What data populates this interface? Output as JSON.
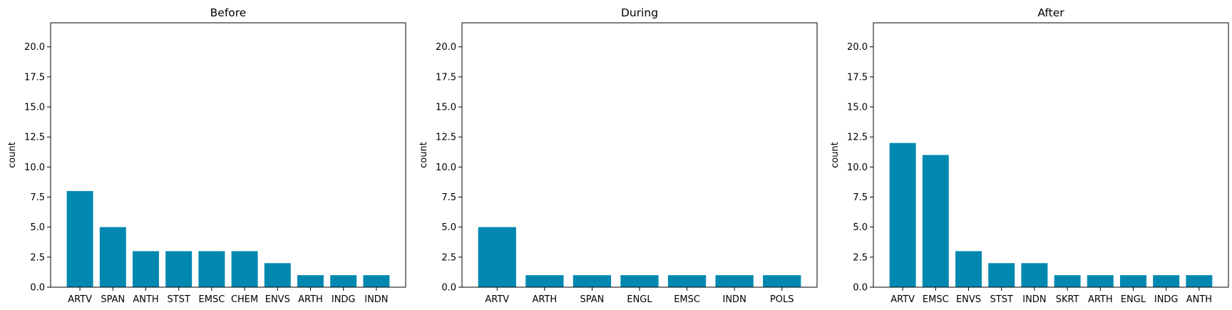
{
  "bar_color": "#0088b0",
  "chart_data": [
    {
      "type": "bar",
      "title": "Before",
      "xlabel": "",
      "ylabel": "count",
      "ylim": [
        0,
        22
      ],
      "yticks": [
        "0.0",
        "2.5",
        "5.0",
        "7.5",
        "10.0",
        "12.5",
        "15.0",
        "17.5",
        "20.0"
      ],
      "ytick_values": [
        0,
        2.5,
        5,
        7.5,
        10,
        12.5,
        15,
        17.5,
        20
      ],
      "categories": [
        "ARTV",
        "SPAN",
        "ANTH",
        "STST",
        "EMSC",
        "CHEM",
        "ENVS",
        "ARTH",
        "INDG",
        "INDN"
      ],
      "values": [
        8,
        5,
        3,
        3,
        3,
        3,
        2,
        1,
        1,
        1
      ]
    },
    {
      "type": "bar",
      "title": "During",
      "xlabel": "",
      "ylabel": "count",
      "ylim": [
        0,
        22
      ],
      "yticks": [
        "0.0",
        "2.5",
        "5.0",
        "7.5",
        "10.0",
        "12.5",
        "15.0",
        "17.5",
        "20.0"
      ],
      "ytick_values": [
        0,
        2.5,
        5,
        7.5,
        10,
        12.5,
        15,
        17.5,
        20
      ],
      "categories": [
        "ARTV",
        "ARTH",
        "SPAN",
        "ENGL",
        "EMSC",
        "INDN",
        "POLS"
      ],
      "values": [
        5,
        1,
        1,
        1,
        1,
        1,
        1
      ]
    },
    {
      "type": "bar",
      "title": "After",
      "xlabel": "",
      "ylabel": "count",
      "ylim": [
        0,
        22
      ],
      "yticks": [
        "0.0",
        "2.5",
        "5.0",
        "7.5",
        "10.0",
        "12.5",
        "15.0",
        "17.5",
        "20.0"
      ],
      "ytick_values": [
        0,
        2.5,
        5,
        7.5,
        10,
        12.5,
        15,
        17.5,
        20
      ],
      "categories": [
        "ARTV",
        "EMSC",
        "ENVS",
        "STST",
        "INDN",
        "SKRT",
        "ARTH",
        "ENGL",
        "INDG",
        "ANTH"
      ],
      "values": [
        12,
        11,
        3,
        2,
        2,
        1,
        1,
        1,
        1,
        1
      ]
    }
  ]
}
